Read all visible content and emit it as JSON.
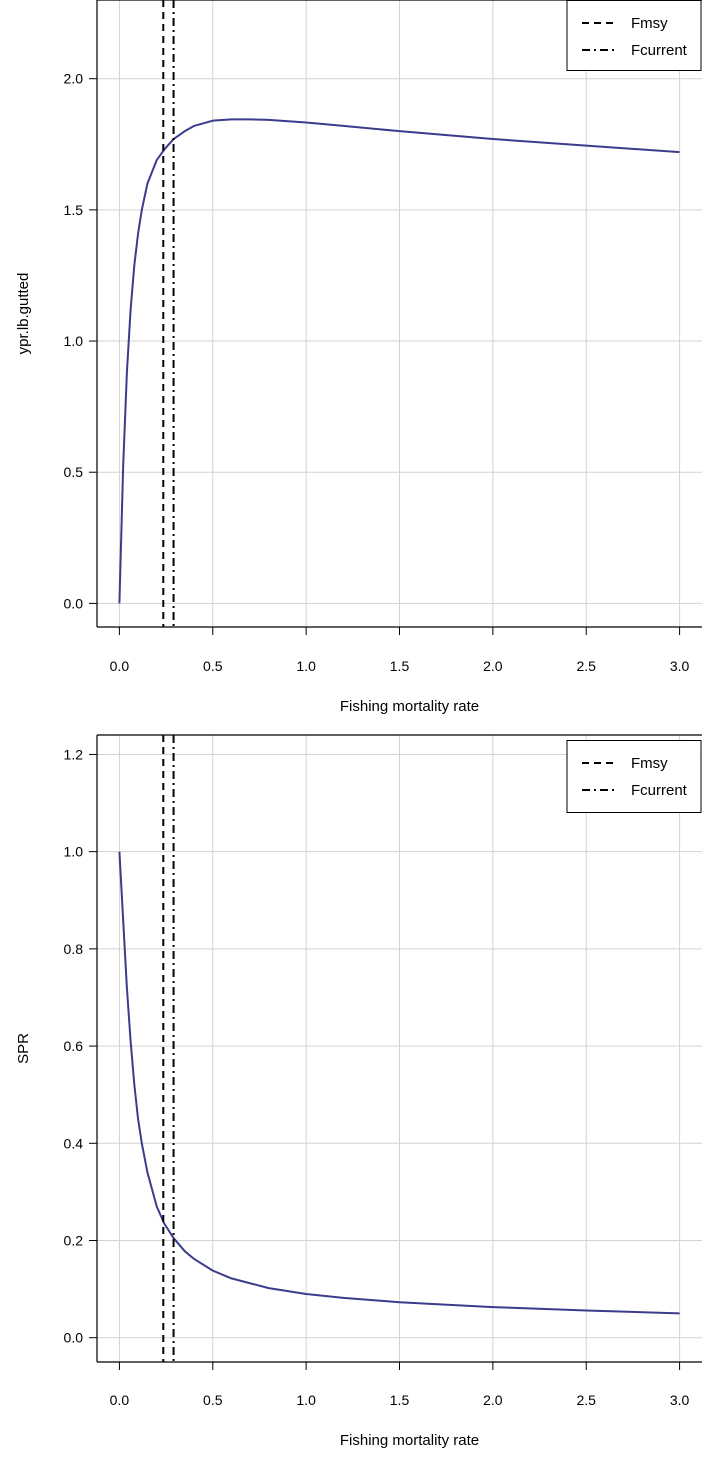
{
  "colors": {
    "series": "#3b3d8c",
    "grid": "#d3d3d3",
    "axis": "#000000",
    "background": "#ffffff"
  },
  "chart_data": [
    {
      "type": "line",
      "title": "",
      "xlabel": "Fishing mortality rate",
      "ylabel": "ypr.lb.gutted",
      "xlim": [
        -0.12,
        3.12
      ],
      "ylim": [
        -0.09,
        2.3
      ],
      "xticks": [
        0.0,
        0.5,
        1.0,
        1.5,
        2.0,
        2.5,
        3.0
      ],
      "xtick_labels": [
        "0.0",
        "0.5",
        "1.0",
        "1.5",
        "2.0",
        "2.5",
        "3.0"
      ],
      "yticks": [
        0.0,
        0.5,
        1.0,
        1.5,
        2.0
      ],
      "ytick_labels": [
        "0.0",
        "0.5",
        "1.0",
        "1.5",
        "2.0"
      ],
      "grid": true,
      "legend_position": "top-right",
      "series": [
        {
          "x": [
            0.0,
            0.02,
            0.04,
            0.06,
            0.08,
            0.1,
            0.12,
            0.15,
            0.2,
            0.24,
            0.29,
            0.35,
            0.4,
            0.5,
            0.6,
            0.7,
            0.8,
            1.0,
            1.2,
            1.5,
            2.0,
            2.5,
            3.0
          ],
          "y": [
            0.0,
            0.52,
            0.88,
            1.12,
            1.29,
            1.41,
            1.5,
            1.6,
            1.69,
            1.73,
            1.77,
            1.8,
            1.82,
            1.84,
            1.845,
            1.845,
            1.843,
            1.833,
            1.82,
            1.8,
            1.77,
            1.745,
            1.72
          ]
        }
      ],
      "vlines": [
        {
          "name": "Fmsy",
          "x": 0.235,
          "style": "dashed"
        },
        {
          "name": "Fcurrent",
          "x": 0.29,
          "style": "dotdash"
        }
      ]
    },
    {
      "type": "line",
      "title": "",
      "xlabel": "Fishing mortality rate",
      "ylabel": "SPR",
      "xlim": [
        -0.12,
        3.12
      ],
      "ylim": [
        -0.05,
        1.24
      ],
      "xticks": [
        0.0,
        0.5,
        1.0,
        1.5,
        2.0,
        2.5,
        3.0
      ],
      "xtick_labels": [
        "0.0",
        "0.5",
        "1.0",
        "1.5",
        "2.0",
        "2.5",
        "3.0"
      ],
      "yticks": [
        0.0,
        0.2,
        0.4,
        0.6,
        0.8,
        1.0,
        1.2
      ],
      "ytick_labels": [
        "0.0",
        "0.2",
        "0.4",
        "0.6",
        "0.8",
        "1.0",
        "1.2"
      ],
      "grid": true,
      "legend_position": "top-right",
      "series": [
        {
          "x": [
            0.0,
            0.02,
            0.04,
            0.06,
            0.08,
            0.1,
            0.12,
            0.15,
            0.2,
            0.24,
            0.29,
            0.35,
            0.4,
            0.5,
            0.6,
            0.8,
            1.0,
            1.2,
            1.5,
            2.0,
            2.5,
            3.0
          ],
          "y": [
            1.0,
            0.86,
            0.72,
            0.61,
            0.52,
            0.45,
            0.4,
            0.34,
            0.27,
            0.235,
            0.205,
            0.178,
            0.162,
            0.138,
            0.122,
            0.102,
            0.09,
            0.082,
            0.073,
            0.063,
            0.056,
            0.05
          ]
        }
      ],
      "vlines": [
        {
          "name": "Fmsy",
          "x": 0.235,
          "style": "dashed"
        },
        {
          "name": "Fcurrent",
          "x": 0.29,
          "style": "dotdash"
        }
      ]
    }
  ]
}
